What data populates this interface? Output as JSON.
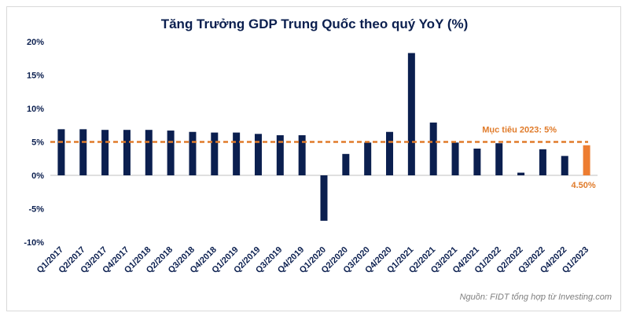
{
  "chart_data": {
    "type": "bar",
    "title": "Tăng Trưởng GDP Trung Quốc theo quý YoY (%)",
    "xlabel": "",
    "ylabel": "",
    "categories": [
      "Q1/2017",
      "Q2/2017",
      "Q3/2017",
      "Q4/2017",
      "Q1/2018",
      "Q2/2018",
      "Q3/2018",
      "Q4/2018",
      "Q1/2019",
      "Q2/2019",
      "Q3/2019",
      "Q4/2019",
      "Q1/2020",
      "Q2/2020",
      "Q3/2020",
      "Q4/2020",
      "Q1/2021",
      "Q2/2021",
      "Q3/2021",
      "Q4/2021",
      "Q1/2022",
      "Q2/2022",
      "Q3/2022",
      "Q4/2022",
      "Q1/2023"
    ],
    "values": [
      6.9,
      6.9,
      6.8,
      6.8,
      6.8,
      6.7,
      6.5,
      6.4,
      6.4,
      6.2,
      6.0,
      6.0,
      -6.8,
      3.2,
      4.9,
      6.5,
      18.3,
      7.9,
      4.9,
      4.0,
      4.8,
      0.4,
      3.9,
      2.9,
      4.5
    ],
    "ylim": [
      -10,
      20
    ],
    "yticks": [
      20,
      15,
      10,
      5,
      0,
      -5,
      -10
    ],
    "ytick_labels": [
      "20%",
      "15%",
      "10%",
      "5%",
      "0%",
      "-5%",
      "-10%"
    ],
    "grid": false,
    "target_line": {
      "value": 5,
      "label": "Mục tiêu 2023: 5%"
    },
    "last_value_label": "4.50%",
    "colors": {
      "bar": "#0b1f4f",
      "highlight_bar": "#ed7d31",
      "target_line": "#e07b2a",
      "axis": "#bfbfbf"
    },
    "source_note": "Nguồn: FIDT tổng hợp từ Investing.com"
  }
}
